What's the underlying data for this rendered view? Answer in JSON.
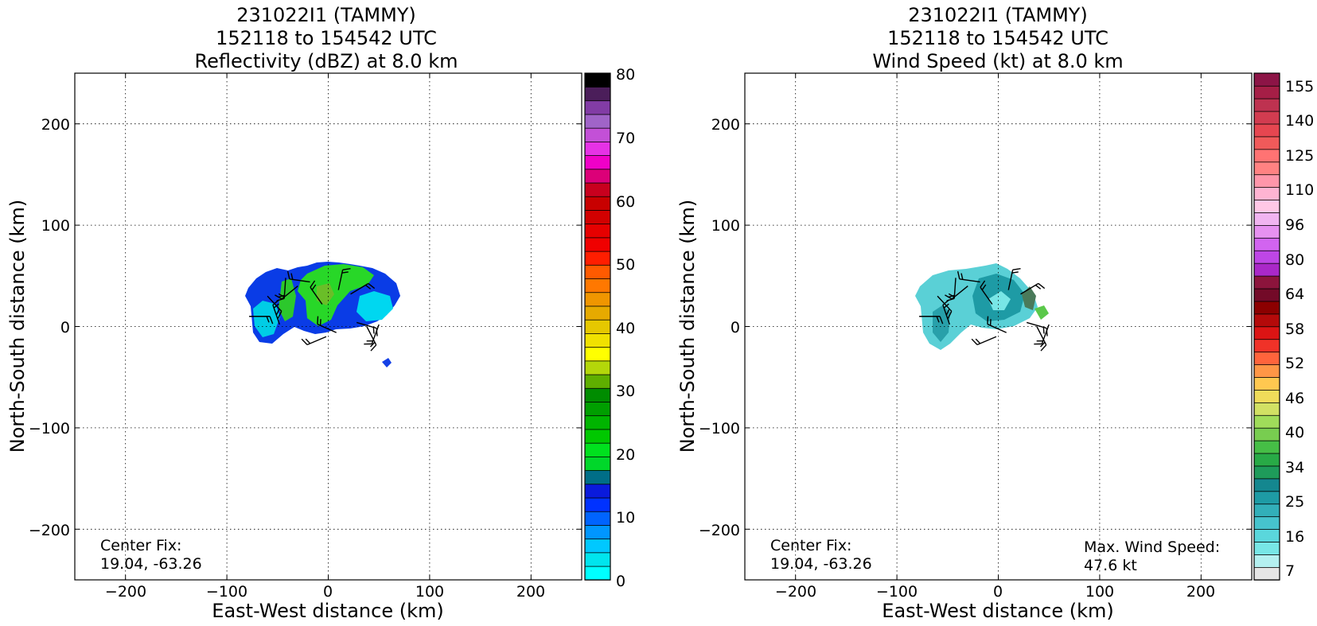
{
  "figure": {
    "panels": [
      {
        "id": "reflectivity",
        "title_lines": [
          "231022I1 (TAMMY)",
          "152118 to 154542 UTC",
          "Reflectivity (dBZ) at 8.0 km"
        ],
        "xlabel": "East-West distance (km)",
        "ylabel": "North-South distance (km)",
        "xticks": [
          "−200",
          "−100",
          "0",
          "100",
          "200"
        ],
        "yticks": [
          "200",
          "100",
          "0",
          "−100",
          "−200"
        ],
        "center_fix_label": "Center Fix:",
        "center_fix_value": "19.04, -63.26",
        "max_wind_label": "",
        "max_wind_value": "",
        "colorbar": {
          "ticks": [
            "80",
            "70",
            "60",
            "50",
            "40",
            "30",
            "20",
            "10",
            "0"
          ],
          "colors": [
            "#00ffff",
            "#00e5ee",
            "#00c8ff",
            "#0096ff",
            "#0064ff",
            "#0032ff",
            "#0a1adc",
            "#006e87",
            "#00d72a",
            "#00e11e",
            "#00c800",
            "#00b400",
            "#009f00",
            "#008c00",
            "#5faf00",
            "#b4d70a",
            "#ffff00",
            "#f0e100",
            "#e6c800",
            "#e6aa00",
            "#f09600",
            "#ff7800",
            "#ff5a00",
            "#ff1e00",
            "#f00000",
            "#e60000",
            "#d20000",
            "#c80000",
            "#c8001e",
            "#dc0078",
            "#f000c8",
            "#e632e6",
            "#c350d7",
            "#a064c8",
            "#823ca5",
            "#4b1e5a",
            "#000000"
          ]
        }
      },
      {
        "id": "windspeed",
        "title_lines": [
          "231022I1 (TAMMY)",
          "152118 to 154542 UTC",
          "Wind Speed (kt) at 8.0 km"
        ],
        "xlabel": "East-West distance (km)",
        "ylabel": "North-South distance (km)",
        "xticks": [
          "−200",
          "−100",
          "0",
          "100",
          "200"
        ],
        "yticks": [
          "200",
          "100",
          "0",
          "−100",
          "−200"
        ],
        "center_fix_label": "Center Fix:",
        "center_fix_value": "19.04, -63.26",
        "max_wind_label": "Max. Wind Speed:",
        "max_wind_value": "47.6 kt",
        "colorbar": {
          "ticks": [
            "155",
            "140",
            "125",
            "110",
            "96",
            "80",
            "64",
            "58",
            "52",
            "46",
            "40",
            "34",
            "25",
            "16",
            "7"
          ],
          "colors": [
            "#e6e6e6",
            "#b4f0f0",
            "#78e6e6",
            "#5ad7dc",
            "#46c3cd",
            "#32afb9",
            "#1e9ba5",
            "#14878f",
            "#1e9b5a",
            "#28aa46",
            "#46be46",
            "#78cd50",
            "#a0dc5a",
            "#d2e164",
            "#f0dc5a",
            "#ffc850",
            "#ff9646",
            "#ff643c",
            "#f03228",
            "#dc1414",
            "#b40a0a",
            "#8c0000",
            "#730a28",
            "#8c143c",
            "#aa28c8",
            "#be46e6",
            "#d264f0",
            "#e691f0",
            "#f0b4f0",
            "#ffc8e6",
            "#ffb4d2",
            "#ff96aa",
            "#ff8282",
            "#ff7373",
            "#f05a5a",
            "#e64650",
            "#d23c50",
            "#be3250",
            "#a51e46",
            "#8c1446"
          ]
        }
      }
    ]
  },
  "chart_data": [
    {
      "type": "heatmap",
      "title": "231022I1 (TAMMY) 152118 to 154542 UTC Reflectivity (dBZ) at 8.0 km",
      "xlabel": "East-West distance (km)",
      "ylabel": "North-South distance (km)",
      "xlim": [
        -250,
        250
      ],
      "ylim": [
        -250,
        250
      ],
      "xticks": [
        -200,
        -100,
        0,
        100,
        200
      ],
      "yticks": [
        -200,
        -100,
        0,
        100,
        200
      ],
      "grid": true,
      "colorbar_range": [
        0,
        80
      ],
      "colorbar_ticks": [
        0,
        10,
        20,
        30,
        40,
        50,
        60,
        70,
        80
      ],
      "center_fix": [
        19.04,
        -63.26
      ],
      "echo_regions": [
        {
          "x_range_km": [
            -80,
            75
          ],
          "y_range_km": [
            -15,
            60
          ],
          "dbz_range": [
            5,
            27
          ]
        },
        {
          "x_range_km": [
            55,
            65
          ],
          "y_range_km": [
            -40,
            -32
          ],
          "dbz_range": [
            10,
            14
          ]
        }
      ],
      "wind_barbs_present": true
    },
    {
      "type": "heatmap",
      "title": "231022I1 (TAMMY) 152118 to 154542 UTC Wind Speed (kt) at 8.0 km",
      "xlabel": "East-West distance (km)",
      "ylabel": "North-South distance (km)",
      "xlim": [
        -250,
        250
      ],
      "ylim": [
        -250,
        250
      ],
      "xticks": [
        -200,
        -100,
        0,
        100,
        200
      ],
      "yticks": [
        -200,
        -100,
        0,
        100,
        200
      ],
      "grid": true,
      "colorbar_range": [
        7,
        160
      ],
      "colorbar_ticks": [
        7,
        16,
        25,
        34,
        40,
        46,
        52,
        58,
        64,
        80,
        96,
        110,
        125,
        140,
        155
      ],
      "center_fix": [
        19.04,
        -63.26
      ],
      "max_wind_speed_kt": 47.6,
      "echo_regions": [
        {
          "x_range_km": [
            -80,
            55
          ],
          "y_range_km": [
            -25,
            55
          ],
          "kt_range": [
            10,
            47.6
          ]
        }
      ],
      "wind_barbs_present": true
    }
  ]
}
